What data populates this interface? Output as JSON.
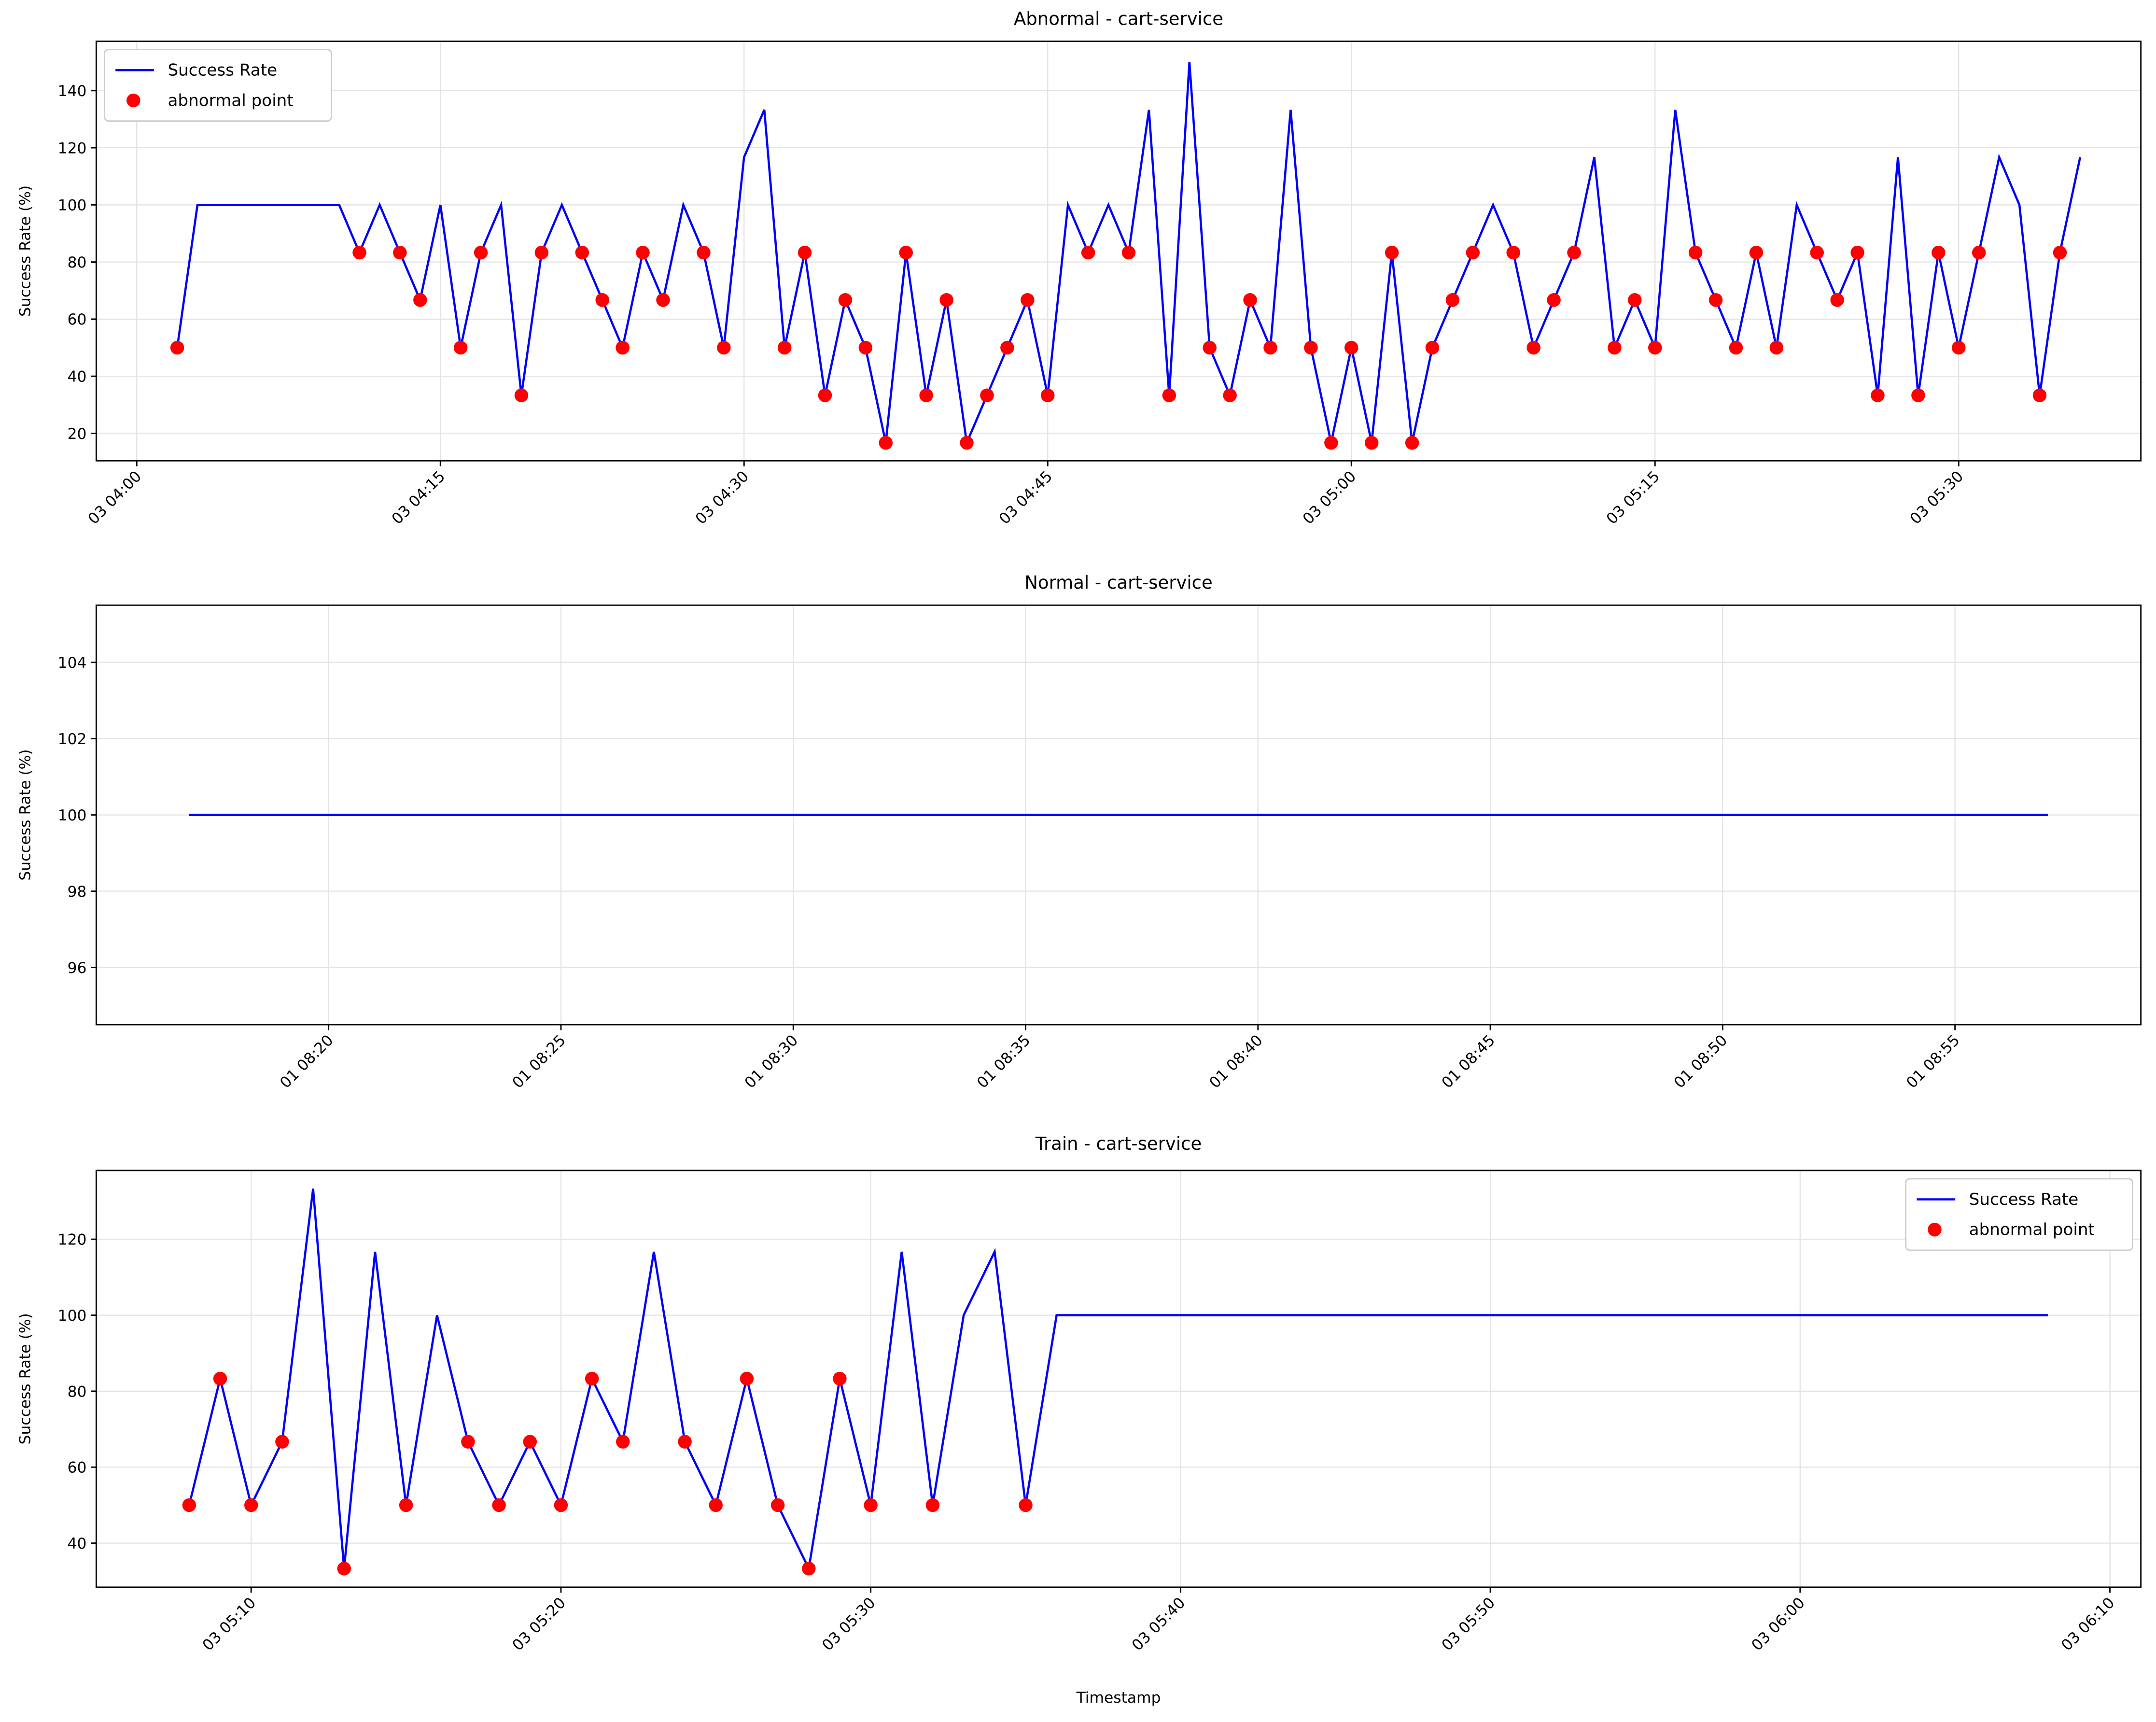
{
  "chart_data": [
    {
      "type": "line",
      "title": "Abnormal - cart-service",
      "ylabel": "Success Rate (%)",
      "grid": true,
      "legend": "upper left",
      "xlim": [
        "03 03:58",
        "03 05:39"
      ],
      "ylim": [
        10.4,
        157.3
      ],
      "xticks": [
        "03 04:00",
        "03 04:15",
        "03 04:30",
        "03 04:45",
        "03 05:00",
        "03 05:15",
        "03 05:30"
      ],
      "yticks": [
        20,
        40,
        60,
        80,
        100,
        120,
        140
      ],
      "x": [
        "03 04:02",
        "03 04:03",
        "03 04:10",
        "03 04:11",
        "03 04:12",
        "03 04:13",
        "03 04:14",
        "03 04:15",
        "03 04:16",
        "03 04:17",
        "03 04:18",
        "03 04:19",
        "03 04:20",
        "03 04:21",
        "03 04:22",
        "03 04:23",
        "03 04:24",
        "03 04:25",
        "03 04:26",
        "03 04:27",
        "03 04:28",
        "03 04:29",
        "03 04:30",
        "03 04:31",
        "03 04:32",
        "03 04:33",
        "03 04:34",
        "03 04:35",
        "03 04:36",
        "03 04:37",
        "03 04:38",
        "03 04:39",
        "03 04:40",
        "03 04:41",
        "03 04:42",
        "03 04:43",
        "03 04:44",
        "03 04:45",
        "03 04:46",
        "03 04:47",
        "03 04:48",
        "03 04:49",
        "03 04:50",
        "03 04:51",
        "03 04:52",
        "03 04:53",
        "03 04:54",
        "03 04:55",
        "03 04:56",
        "03 04:57",
        "03 04:58",
        "03 04:59",
        "03 05:00",
        "03 05:01",
        "03 05:02",
        "03 05:03",
        "03 05:04",
        "03 05:05",
        "03 05:06",
        "03 05:07",
        "03 05:08",
        "03 05:09",
        "03 05:10",
        "03 05:11",
        "03 05:12",
        "03 05:13",
        "03 05:14",
        "03 05:15",
        "03 05:16",
        "03 05:17",
        "03 05:18",
        "03 05:19",
        "03 05:20",
        "03 05:21",
        "03 05:22",
        "03 05:23",
        "03 05:24",
        "03 05:25",
        "03 05:26",
        "03 05:27",
        "03 05:28",
        "03 05:29",
        "03 05:30",
        "03 05:31",
        "03 05:32",
        "03 05:33",
        "03 05:34",
        "03 05:35",
        "03 05:36"
      ],
      "series": [
        {
          "name": "Success Rate",
          "color": "#0000ff",
          "values": [
            50,
            100,
            100,
            83.3,
            100,
            83.3,
            66.7,
            100,
            50,
            83.3,
            100,
            33.3,
            83.3,
            100,
            83.3,
            66.7,
            50,
            83.3,
            66.7,
            100,
            83.3,
            50,
            116.7,
            133.3,
            50,
            83.3,
            33.3,
            66.7,
            50,
            16.7,
            83.3,
            33.3,
            66.7,
            16.7,
            33.3,
            50,
            66.7,
            33.3,
            100,
            83.3,
            100,
            83.3,
            133.3,
            33.3,
            150,
            50,
            33.3,
            66.7,
            50,
            133.3,
            50,
            16.7,
            50,
            16.7,
            83.3,
            16.7,
            50,
            66.7,
            83.3,
            100,
            83.3,
            50,
            66.7,
            83.3,
            116.7,
            50,
            66.7,
            50,
            133.3,
            83.3,
            66.7,
            50,
            83.3,
            50,
            100,
            83.3,
            66.7,
            83.3,
            33.3,
            116.7,
            33.3,
            83.3,
            50,
            83.3,
            116.7,
            100,
            33.3,
            83.3,
            116.7
          ]
        },
        {
          "name": "abnormal point",
          "type": "scatter",
          "color": "#ff0000",
          "x": [
            "03 04:02",
            "03 04:11",
            "03 04:13",
            "03 04:14",
            "03 04:16",
            "03 04:17",
            "03 04:19",
            "03 04:20",
            "03 04:22",
            "03 04:23",
            "03 04:24",
            "03 04:25",
            "03 04:26",
            "03 04:28",
            "03 04:29",
            "03 04:32",
            "03 04:33",
            "03 04:34",
            "03 04:35",
            "03 04:36",
            "03 04:37",
            "03 04:38",
            "03 04:39",
            "03 04:40",
            "03 04:41",
            "03 04:42",
            "03 04:43",
            "03 04:44",
            "03 04:45",
            "03 04:47",
            "03 04:49",
            "03 04:51",
            "03 04:53",
            "03 04:54",
            "03 04:55",
            "03 04:56",
            "03 04:58",
            "03 04:59",
            "03 05:00",
            "03 05:01",
            "03 05:02",
            "03 05:03",
            "03 05:04",
            "03 05:05",
            "03 05:06",
            "03 05:08",
            "03 05:09",
            "03 05:10",
            "03 05:11",
            "03 05:13",
            "03 05:14",
            "03 05:15",
            "03 05:17",
            "03 05:18",
            "03 05:19",
            "03 05:20",
            "03 05:21",
            "03 05:23",
            "03 05:24",
            "03 05:25",
            "03 05:26",
            "03 05:28",
            "03 05:29",
            "03 05:30",
            "03 05:31",
            "03 05:34",
            "03 05:35"
          ],
          "values": [
            50,
            83.3,
            83.3,
            66.7,
            50,
            83.3,
            33.3,
            83.3,
            83.3,
            66.7,
            50,
            83.3,
            66.7,
            83.3,
            50,
            50,
            83.3,
            33.3,
            66.7,
            50,
            16.7,
            83.3,
            33.3,
            66.7,
            16.7,
            33.3,
            50,
            66.7,
            33.3,
            83.3,
            83.3,
            33.3,
            50,
            33.3,
            66.7,
            50,
            50,
            16.7,
            50,
            16.7,
            83.3,
            16.7,
            50,
            66.7,
            83.3,
            83.3,
            50,
            66.7,
            83.3,
            50,
            66.7,
            50,
            83.3,
            66.7,
            50,
            83.3,
            50,
            83.3,
            66.7,
            83.3,
            33.3,
            33.3,
            83.3,
            50,
            83.3,
            33.3,
            83.3
          ]
        }
      ]
    },
    {
      "type": "line",
      "title": "Normal - cart-service",
      "ylabel": "Success Rate (%)",
      "grid": true,
      "xlim": [
        "01 08:15",
        "01 08:59"
      ],
      "ylim": [
        94.5,
        105.5
      ],
      "xticks": [
        "01 08:20",
        "01 08:25",
        "01 08:30",
        "01 08:35",
        "01 08:40",
        "01 08:45",
        "01 08:50",
        "01 08:55"
      ],
      "yticks": [
        96,
        98,
        100,
        102,
        104
      ],
      "x": [
        "01 08:17",
        "01 08:57"
      ],
      "series": [
        {
          "name": "Success Rate",
          "color": "#0000ff",
          "values": [
            100,
            100
          ]
        }
      ]
    },
    {
      "type": "line",
      "title": "Train - cart-service",
      "ylabel": "Success Rate (%)",
      "xlabel": "Timestamp",
      "grid": true,
      "legend": "upper right",
      "xlim": [
        "03 05:05",
        "03 06:11"
      ],
      "ylim": [
        28.4,
        138.1
      ],
      "xticks": [
        "03 05:10",
        "03 05:20",
        "03 05:30",
        "03 05:40",
        "03 05:50",
        "03 06:00",
        "03 06:10"
      ],
      "yticks": [
        40,
        60,
        80,
        100,
        120
      ],
      "x": [
        "03 05:08",
        "03 05:09",
        "03 05:10",
        "03 05:11",
        "03 05:12",
        "03 05:13",
        "03 05:14",
        "03 05:15",
        "03 05:16",
        "03 05:17",
        "03 05:18",
        "03 05:19",
        "03 05:20",
        "03 05:21",
        "03 05:22",
        "03 05:23",
        "03 05:24",
        "03 05:25",
        "03 05:26",
        "03 05:27",
        "03 05:28",
        "03 05:29",
        "03 05:30",
        "03 05:31",
        "03 05:32",
        "03 05:33",
        "03 05:34",
        "03 05:35",
        "03 05:36",
        "03 06:08"
      ],
      "series": [
        {
          "name": "Success Rate",
          "color": "#0000ff",
          "values": [
            50,
            83.3,
            50,
            66.7,
            133.3,
            33.3,
            116.7,
            50,
            100,
            66.7,
            50,
            66.7,
            50,
            83.3,
            66.7,
            116.7,
            66.7,
            50,
            83.3,
            50,
            33.3,
            83.3,
            50,
            116.7,
            50,
            100,
            116.7,
            50,
            100,
            100
          ]
        },
        {
          "name": "abnormal point",
          "type": "scatter",
          "color": "#ff0000",
          "x": [
            "03 05:08",
            "03 05:09",
            "03 05:10",
            "03 05:11",
            "03 05:13",
            "03 05:15",
            "03 05:17",
            "03 05:18",
            "03 05:19",
            "03 05:20",
            "03 05:21",
            "03 05:22",
            "03 05:24",
            "03 05:25",
            "03 05:26",
            "03 05:27",
            "03 05:28",
            "03 05:29",
            "03 05:30",
            "03 05:32",
            "03 05:35"
          ],
          "values": [
            50,
            83.3,
            50,
            66.7,
            33.3,
            50,
            66.7,
            50,
            66.7,
            50,
            83.3,
            66.7,
            66.7,
            50,
            83.3,
            50,
            33.3,
            83.3,
            50,
            50,
            50
          ]
        }
      ]
    }
  ]
}
